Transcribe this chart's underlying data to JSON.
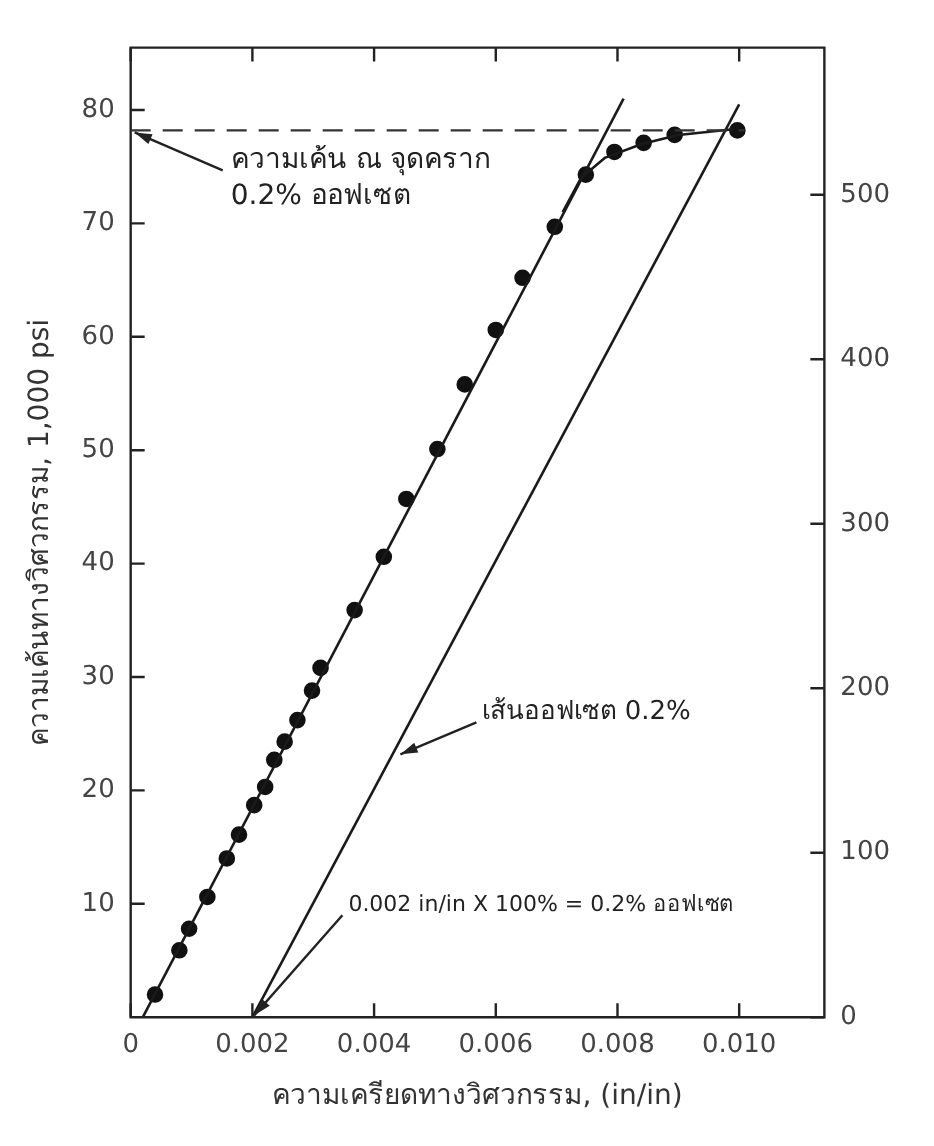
{
  "chart_data": {
    "type": "scatter",
    "xlabel": "ความเครียดทางวิศวกรรม, (in/in)",
    "ylabel": "ความเค้นทางวิศวกรรม, 1,000 psi",
    "xlim": [
      0,
      0.0114
    ],
    "xticks": [
      0,
      0.002,
      0.004,
      0.006,
      0.008,
      {
        "value": 0.01,
        "label": "0.010"
      }
    ],
    "ylim": [
      0,
      85.5
    ],
    "yticks": [
      10,
      20,
      30,
      40,
      50,
      60,
      70,
      80
    ],
    "y2lim": [
      0,
      589.5
    ],
    "y2ticks": [
      0,
      100,
      200,
      300,
      400,
      500
    ],
    "grid": false,
    "legend": false,
    "series": [
      {
        "type": "line",
        "color": "#1a1a1a",
        "marker": "none",
        "line_style": "solid",
        "x": [
          0.0002,
          0.0081
        ],
        "values": [
          0,
          81
        ]
      },
      {
        "type": "line",
        "color": "#1a1a1a",
        "marker": "none",
        "line_style": "solid",
        "x": [
          0.002,
          0.01
        ],
        "values": [
          0,
          80.5
        ]
      },
      {
        "type": "line",
        "color": "#1a1a1a",
        "marker": "none",
        "line_style": "solid",
        "x": [
          0.0071,
          0.0074,
          0.0078,
          0.0084,
          0.009,
          0.0099
        ],
        "values": [
          71,
          74,
          75.8,
          77,
          77.8,
          78.3
        ]
      },
      {
        "color": "#111111",
        "marker": "circle",
        "x": [
          0.0004,
          0.0008,
          0.00096,
          0.00126,
          0.00158,
          0.00178,
          0.00203,
          0.00221,
          0.00236,
          0.00253,
          0.00274,
          0.00298,
          0.00312,
          0.00368,
          0.00416,
          0.00453,
          0.00504,
          0.00549,
          0.006,
          0.00644,
          0.00697,
          0.00748,
          0.00795,
          0.00843,
          0.00894,
          0.00997
        ],
        "values": [
          2,
          5.9,
          7.8,
          10.6,
          14,
          16.1,
          18.7,
          20.3,
          22.7,
          24.3,
          26.2,
          28.8,
          30.8,
          35.9,
          40.6,
          45.7,
          50.1,
          55.8,
          60.6,
          65.2,
          69.7,
          74.3,
          76.3,
          77.1,
          77.8,
          78.2
        ]
      }
    ],
    "ref_lines": [
      {
        "axis": "y",
        "value": 78.2,
        "label": "ความเค้น ณ จุดคราก 0.2% ออฟเซต",
        "color": "#333333",
        "line_style": "dashed"
      }
    ],
    "annotations": [
      {
        "text": "เส้นออฟเซต 0.2%",
        "x": 0.0044,
        "y": 23
      },
      {
        "text": "0.002 in/in X 100% = 0.2% ออฟเซต",
        "x": 0.002,
        "y": 0
      }
    ]
  }
}
